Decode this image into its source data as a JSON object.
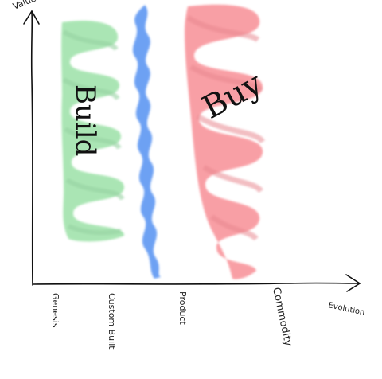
{
  "axes": {
    "y_label": "Value",
    "x_label": "Evolution",
    "stages": [
      "Genesis",
      "Custom Built",
      "Product",
      "Commodity"
    ]
  },
  "bands": {
    "build": {
      "label": "Build",
      "color": "#66d178"
    },
    "divider": {
      "color": "#3d82f0"
    },
    "buy": {
      "label": "Buy",
      "color": "#f5606a"
    }
  }
}
